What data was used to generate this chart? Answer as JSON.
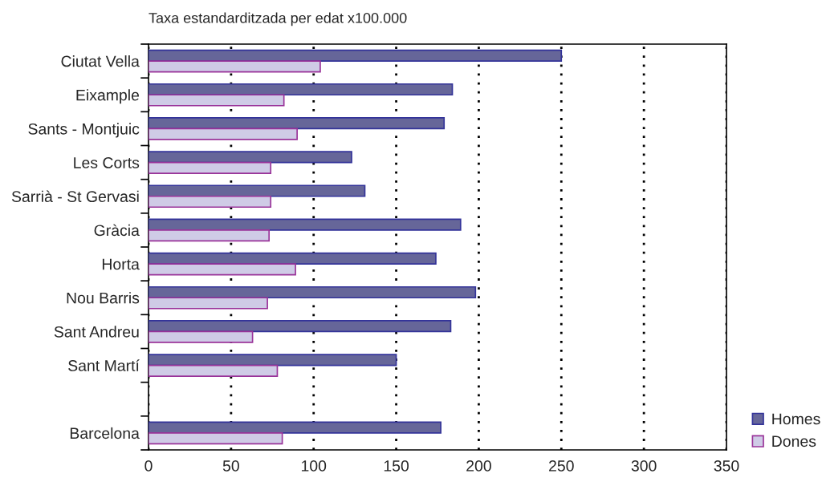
{
  "chart_data": {
    "type": "bar",
    "orientation": "horizontal",
    "title": "Taxa estandarditzada per edat x100.000",
    "categories": [
      "Ciutat Vella",
      "Eixample",
      "Sants - Montjuic",
      "Les Corts",
      "Sarrià - St Gervasi",
      "Gràcia",
      "Horta",
      "Nou Barris",
      "Sant Andreu",
      "Sant Martí",
      null,
      "Barcelona"
    ],
    "series": [
      {
        "name": "Homes",
        "color": "#666699",
        "values": [
          250,
          184,
          179,
          123,
          131,
          189,
          174,
          198,
          183,
          150,
          null,
          177
        ]
      },
      {
        "name": "Dones",
        "color": "#cfcbe6",
        "values": [
          104,
          82,
          90,
          74,
          74,
          73,
          89,
          72,
          63,
          78,
          null,
          81
        ]
      }
    ],
    "xlim": [
      0,
      350
    ],
    "xticks": [
      0,
      50,
      100,
      150,
      200,
      250,
      300,
      350
    ],
    "grid": "x",
    "legend": "bottom right"
  }
}
